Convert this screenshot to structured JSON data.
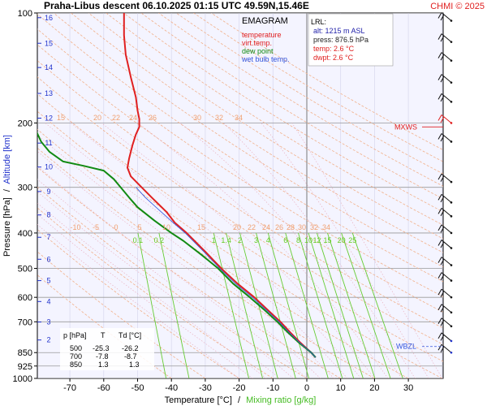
{
  "chart_data": {
    "type": "line",
    "title": "Praha-Libus   descent   06.10.2025 01:15 UTC  49.59N,15.46E",
    "credit": "CHMI © 2025",
    "xlabel": "Temperature [°C]",
    "xlabel_sep": "/",
    "xlabel2": "Mixing ratio [g/kg]",
    "ylabel": "Pressure [hPa]",
    "ylabel_sep": "/",
    "ylabel2": "Altitude [km]",
    "xlim": [
      -80,
      40
    ],
    "ylim_hpa": [
      1000,
      100
    ],
    "y_scale": "log",
    "x_ticks": [
      -70,
      -60,
      -50,
      -40,
      -30,
      -20,
      -10,
      0,
      10,
      20,
      30
    ],
    "p_ticks": [
      100,
      200,
      300,
      400,
      500,
      600,
      700,
      850,
      925,
      1000
    ],
    "km_ticks": [
      {
        "km": 2,
        "p": 785
      },
      {
        "km": 3,
        "p": 701
      },
      {
        "km": 4,
        "p": 616
      },
      {
        "km": 5,
        "p": 540
      },
      {
        "km": 6,
        "p": 472
      },
      {
        "km": 7,
        "p": 411
      },
      {
        "km": 8,
        "p": 357
      },
      {
        "km": 9,
        "p": 308
      },
      {
        "km": 10,
        "p": 264
      },
      {
        "km": 11,
        "p": 227
      },
      {
        "km": 12,
        "p": 194
      },
      {
        "km": 13,
        "p": 166
      },
      {
        "km": 14,
        "p": 141
      },
      {
        "km": 15,
        "p": 121
      },
      {
        "km": 16,
        "p": 103
      }
    ],
    "legend": {
      "title": "EMAGRAM",
      "entries": [
        {
          "label": "temperature",
          "color": "#e02020"
        },
        {
          "label": "virt.temp.",
          "color": "#e02020"
        },
        {
          "label": "dew point",
          "color": "#128a12"
        },
        {
          "label": "wet bulb temp.",
          "color": "#3355dd"
        }
      ]
    },
    "lrl": {
      "title": "LRL:",
      "lines": [
        {
          "text": "alt: 1215 m ASL",
          "color": "#2222aa"
        },
        {
          "text": "press: 876.5 hPa",
          "color": "#222222"
        },
        {
          "text": "temp: 2.6 °C",
          "color": "#e02020"
        },
        {
          "text": "dwpt: 2.6 °C",
          "color": "#e02020"
        }
      ]
    },
    "table": {
      "headers": [
        "p [hPa]",
        "T",
        "Td [°C]"
      ],
      "rows": [
        [
          "500",
          "-25.3",
          "-26.2"
        ],
        [
          "700",
          "-7.8",
          "-8.7"
        ],
        [
          "850",
          "1.3",
          "1.3"
        ]
      ]
    },
    "mixing_ratio_labels": [
      "0.1",
      "0.2",
      "1",
      "1.4",
      "2",
      "3",
      "4",
      "6",
      "8",
      "10",
      "12",
      "15",
      "20",
      "25"
    ],
    "mixing_ratio_values": [
      0.1,
      0.2,
      1,
      1.4,
      2,
      3,
      4,
      6,
      8,
      10,
      12,
      15,
      20,
      25
    ],
    "adiabat_labels_low": [
      "-10",
      "-5",
      "0",
      "5",
      "10",
      "15",
      "20",
      "22",
      "24",
      "26",
      "28",
      "30",
      "32",
      "34"
    ],
    "adiabat_labels_high": [
      "15",
      "20",
      "22",
      "24",
      "26",
      "30",
      "32",
      "34"
    ],
    "markers": [
      {
        "label": "MXWS",
        "p": 205,
        "color": "#e02020"
      },
      {
        "label": "WBZL",
        "p": 818,
        "color": "#3355dd"
      }
    ],
    "series": [
      {
        "name": "temperature",
        "color": "#e02020",
        "points": [
          [
            876.5,
            2.6
          ],
          [
            850,
            1.3
          ],
          [
            800,
            -1.8
          ],
          [
            750,
            -4.8
          ],
          [
            700,
            -7.8
          ],
          [
            650,
            -11.5
          ],
          [
            600,
            -15.5
          ],
          [
            550,
            -20.5
          ],
          [
            500,
            -25.3
          ],
          [
            450,
            -30.0
          ],
          [
            400,
            -35.5
          ],
          [
            375,
            -39.0
          ],
          [
            350,
            -41.5
          ],
          [
            320,
            -45.8
          ],
          [
            300,
            -48.8
          ],
          [
            280,
            -52.0
          ],
          [
            265,
            -53.0
          ],
          [
            250,
            -52.5
          ],
          [
            230,
            -51.5
          ],
          [
            215,
            -50.5
          ],
          [
            205,
            -49.5
          ],
          [
            195,
            -49.5
          ],
          [
            185,
            -50.0
          ],
          [
            170,
            -50.5
          ],
          [
            150,
            -52.0
          ],
          [
            130,
            -53.5
          ],
          [
            115,
            -54.0
          ],
          [
            100,
            -54.0
          ]
        ]
      },
      {
        "name": "dew point",
        "color": "#128a12",
        "points": [
          [
            876.5,
            2.6
          ],
          [
            850,
            1.3
          ],
          [
            800,
            -2.2
          ],
          [
            750,
            -5.5
          ],
          [
            700,
            -8.7
          ],
          [
            650,
            -12.5
          ],
          [
            600,
            -16.8
          ],
          [
            550,
            -21.8
          ],
          [
            500,
            -26.2
          ],
          [
            460,
            -31.0
          ],
          [
            420,
            -36.5
          ],
          [
            400,
            -40.0
          ],
          [
            370,
            -45.0
          ],
          [
            340,
            -50.0
          ],
          [
            320,
            -52.5
          ],
          [
            300,
            -55.0
          ],
          [
            285,
            -57.0
          ],
          [
            270,
            -60.0
          ],
          [
            262,
            -66.0
          ],
          [
            255,
            -72.0
          ],
          [
            240,
            -76.0
          ],
          [
            225,
            -78.5
          ],
          [
            210,
            -80.0
          ]
        ]
      }
    ]
  }
}
